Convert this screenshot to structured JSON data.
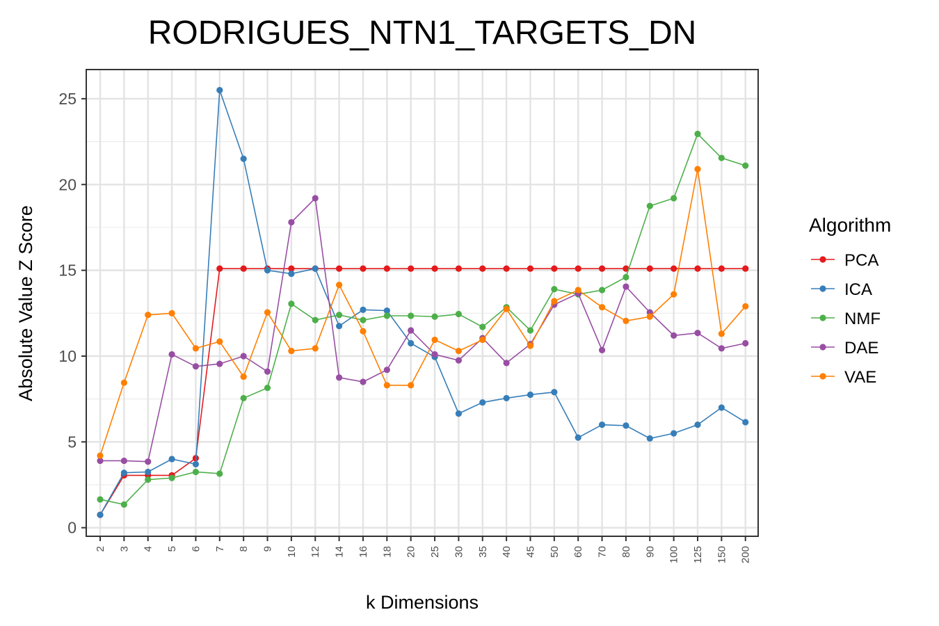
{
  "chart_data": {
    "type": "line",
    "title": "RODRIGUES_NTN1_TARGETS_DN",
    "xlabel": "k Dimensions",
    "ylabel": "Absolute Value Z Score",
    "categories": [
      "2",
      "3",
      "4",
      "5",
      "6",
      "7",
      "8",
      "9",
      "10",
      "12",
      "14",
      "16",
      "18",
      "20",
      "25",
      "30",
      "35",
      "40",
      "45",
      "50",
      "60",
      "70",
      "80",
      "90",
      "100",
      "125",
      "150",
      "200"
    ],
    "yticks": [
      0,
      5,
      10,
      15,
      20,
      25
    ],
    "ylim": [
      -0.5,
      26.7
    ],
    "grid": true,
    "legend": {
      "title": "Algorithm",
      "position": "right"
    },
    "series": [
      {
        "name": "PCA",
        "color": "#e41a1c",
        "values": [
          0.75,
          3.05,
          3.05,
          3.05,
          4.05,
          15.1,
          15.1,
          15.1,
          15.1,
          15.1,
          15.1,
          15.1,
          15.1,
          15.1,
          15.1,
          15.1,
          15.1,
          15.1,
          15.1,
          15.1,
          15.1,
          15.1,
          15.1,
          15.1,
          15.1,
          15.1,
          15.1,
          15.1
        ]
      },
      {
        "name": "ICA",
        "color": "#377eb8",
        "values": [
          0.75,
          3.2,
          3.25,
          4.0,
          3.7,
          25.5,
          21.5,
          15.0,
          14.8,
          15.1,
          11.75,
          12.7,
          12.65,
          10.75,
          9.95,
          6.65,
          7.3,
          7.55,
          7.75,
          7.9,
          5.25,
          6.0,
          5.95,
          5.2,
          5.5,
          6.0,
          7.0,
          6.15
        ]
      },
      {
        "name": "NMF",
        "color": "#4daf4a",
        "values": [
          1.65,
          1.35,
          2.8,
          2.9,
          3.25,
          3.15,
          7.55,
          8.15,
          13.05,
          12.1,
          12.4,
          12.1,
          12.35,
          12.35,
          12.3,
          12.45,
          11.7,
          12.85,
          11.5,
          13.9,
          13.6,
          13.85,
          14.6,
          18.75,
          19.2,
          22.95,
          21.55,
          21.1
        ]
      },
      {
        "name": "DAE",
        "color": "#984ea3",
        "values": [
          3.9,
          3.9,
          3.85,
          10.1,
          9.4,
          9.55,
          10.0,
          9.1,
          17.8,
          19.2,
          8.75,
          8.5,
          9.2,
          11.5,
          10.1,
          9.75,
          11.05,
          9.6,
          10.7,
          13.0,
          13.65,
          10.35,
          14.05,
          12.55,
          11.2,
          11.35,
          10.45,
          10.75
        ]
      },
      {
        "name": "VAE",
        "color": "#ff7f00",
        "values": [
          4.2,
          8.45,
          12.4,
          12.5,
          10.45,
          10.85,
          8.8,
          12.55,
          10.3,
          10.45,
          14.15,
          11.45,
          8.3,
          8.3,
          10.95,
          10.3,
          10.95,
          12.75,
          10.6,
          13.2,
          13.85,
          12.85,
          12.05,
          12.3,
          13.6,
          20.9,
          11.3,
          12.9
        ]
      }
    ]
  }
}
